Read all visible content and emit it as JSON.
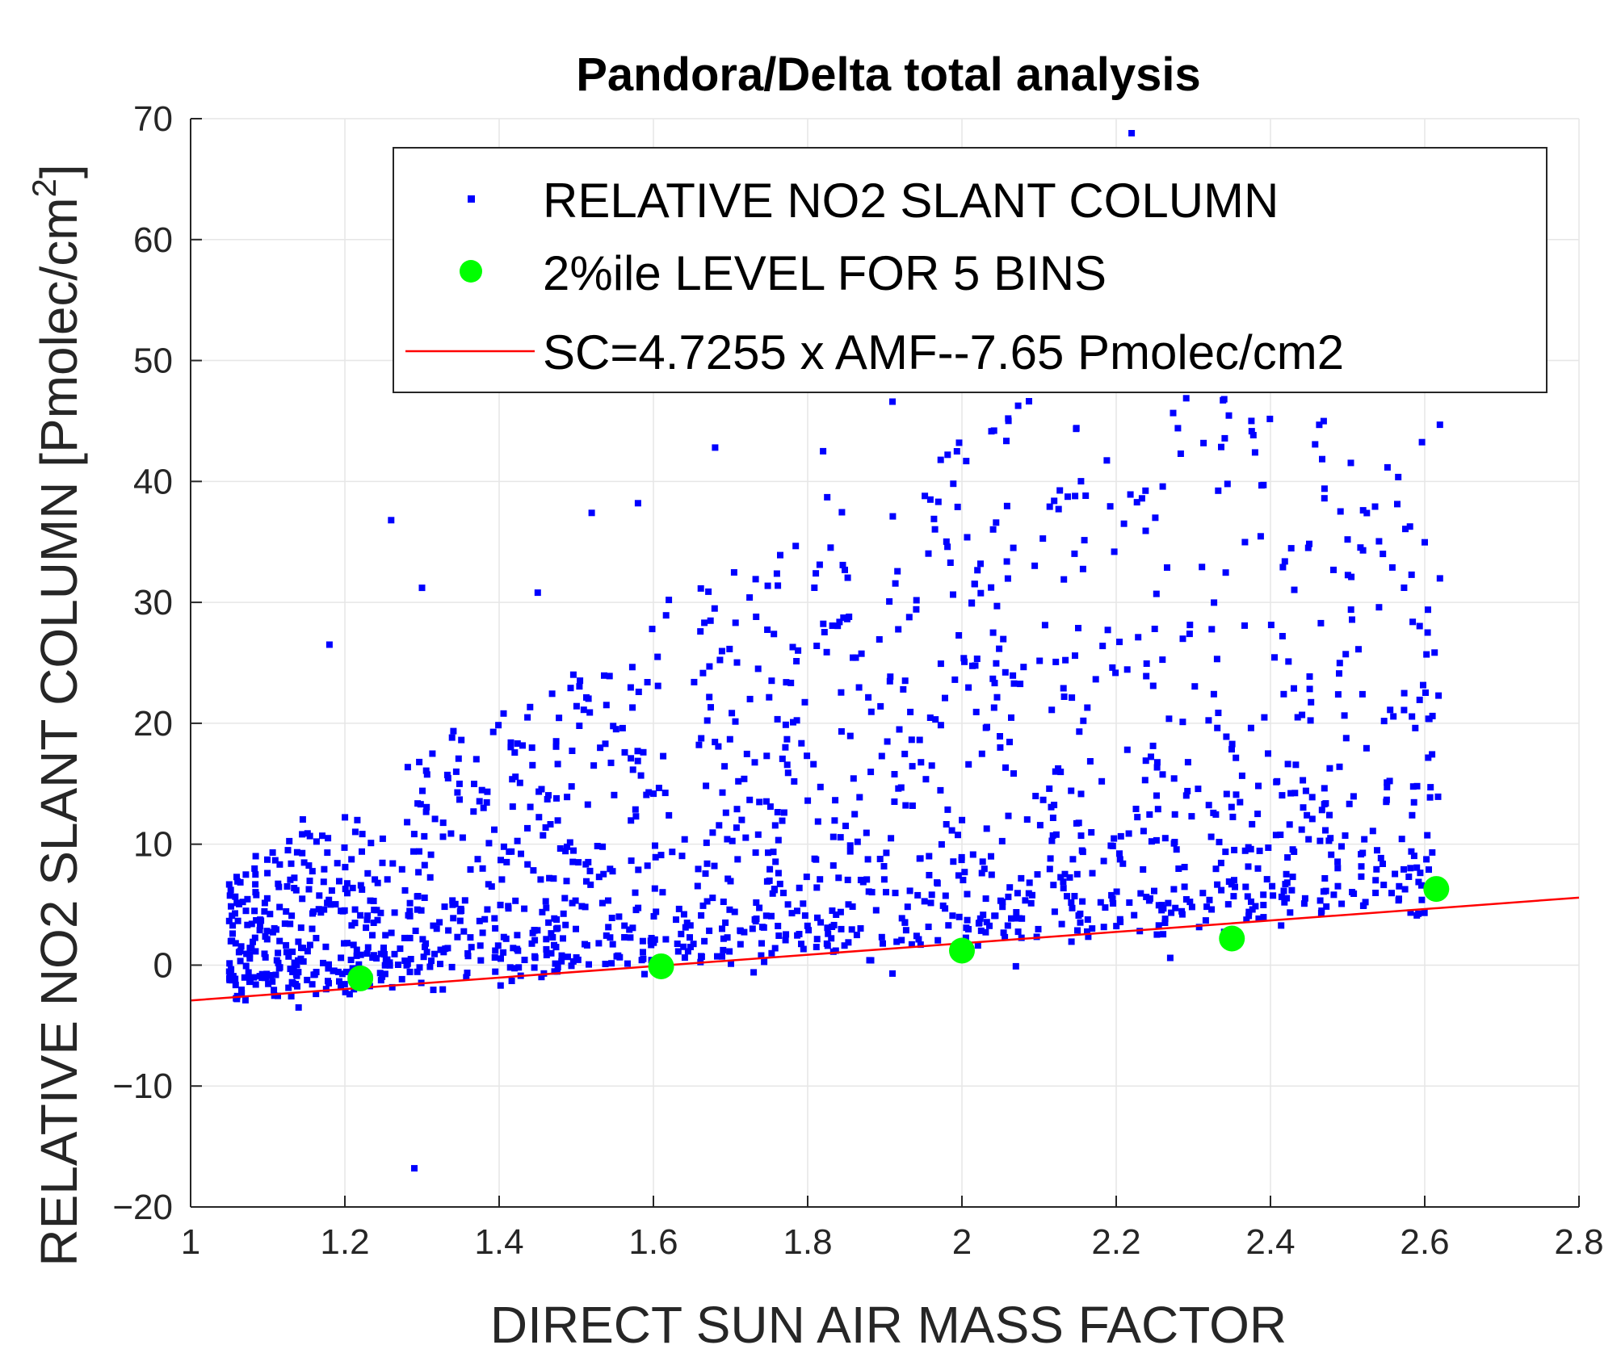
{
  "chart_data": {
    "type": "scatter",
    "title": "Pandora/Delta total analysis",
    "xlabel": "DIRECT SUN AIR MASS FACTOR",
    "ylabel": "RELATIVE NO2 SLANT COLUMN [Pmolec/cm",
    "ylabel_superscript": "2",
    "ylabel_close": "]",
    "xlim": [
      1,
      2.8
    ],
    "ylim": [
      -20,
      70
    ],
    "xticks": [
      1,
      1.2,
      1.4,
      1.6,
      1.8,
      2,
      2.2,
      2.4,
      2.6,
      2.8
    ],
    "xtick_labels": [
      "1",
      "1.2",
      "1.4",
      "1.6",
      "1.8",
      "2",
      "2.2",
      "2.4",
      "2.6",
      "2.8"
    ],
    "yticks": [
      -20,
      -10,
      0,
      10,
      20,
      30,
      40,
      50,
      60,
      70
    ],
    "ytick_labels": [
      "−20",
      "−10",
      "0",
      "10",
      "20",
      "30",
      "40",
      "50",
      "60",
      "70"
    ],
    "grid": true,
    "legend_position": "top-right",
    "series": [
      {
        "name": "RELATIVE NO2 SLANT COLUMN",
        "kind": "scatter-square",
        "color": "#0000ff",
        "sample_points": [
          [
            1.29,
            -16.8
          ],
          [
            2.22,
            68.8
          ],
          [
            1.91,
            46.6
          ],
          [
            2.34,
            46.8
          ],
          [
            1.26,
            36.8
          ],
          [
            1.52,
            37.4
          ],
          [
            1.58,
            38.2
          ],
          [
            1.68,
            42.8
          ],
          [
            1.82,
            42.5
          ],
          [
            2.06,
            45.2
          ],
          [
            2.28,
            44.4
          ],
          [
            2.38,
            42.4
          ],
          [
            2.47,
            39.4
          ],
          [
            2.5,
            35.2
          ],
          [
            2.52,
            34.3
          ],
          [
            1.18,
            26.5
          ],
          [
            1.3,
            31.2
          ],
          [
            1.45,
            30.8
          ],
          [
            1.62,
            30.2
          ],
          [
            2.61,
            20.6
          ],
          [
            2.59,
            14.8
          ],
          [
            2.55,
            13.5
          ],
          [
            1.14,
            -3.5
          ],
          [
            1.06,
            -2.8
          ],
          [
            1.73,
            -0.6
          ],
          [
            1.91,
            -0.7
          ],
          [
            2.07,
            -0.1
          ],
          [
            2.27,
            0.6
          ]
        ]
      },
      {
        "name": "2%ile LEVEL FOR 5 BINS",
        "kind": "scatter-circle",
        "color": "#00ff00",
        "x": [
          1.22,
          1.61,
          2.0,
          2.35,
          2.615
        ],
        "y": [
          -1.1,
          -0.1,
          1.2,
          2.2,
          6.3
        ]
      },
      {
        "name": "SC=4.7255 x AMF--7.65 Pmolec/cm2",
        "kind": "line",
        "color": "#ff0000",
        "slope": 4.7255,
        "intercept": -7.65,
        "x": [
          1.0,
          2.8
        ]
      }
    ]
  }
}
